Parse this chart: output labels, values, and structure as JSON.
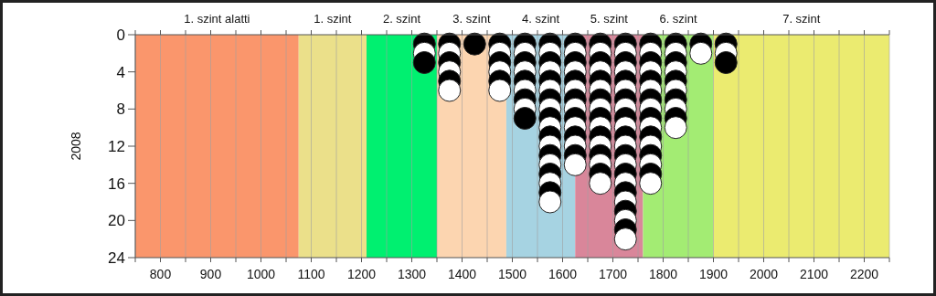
{
  "chart_data": {
    "type": "scatter",
    "ylabel": "2008",
    "xlim": [
      750,
      2250
    ],
    "ylim": [
      24,
      0
    ],
    "xticks": [
      {
        "value": 750,
        "label": null
      },
      800,
      {
        "value": 850,
        "label": null
      },
      900,
      {
        "value": 950,
        "label": null
      },
      1000,
      {
        "value": 1050,
        "label": null
      },
      1100,
      {
        "value": 1150,
        "label": null
      },
      1200,
      {
        "value": 1250,
        "label": null
      },
      1300,
      {
        "value": 1350,
        "label": null
      },
      1400,
      {
        "value": 1450,
        "label": null
      },
      1500,
      {
        "value": 1550,
        "label": null
      },
      1600,
      {
        "value": 1650,
        "label": null
      },
      1700,
      {
        "value": 1750,
        "label": null
      },
      1800,
      {
        "value": 1850,
        "label": null
      },
      1900,
      {
        "value": 1950,
        "label": null
      },
      2000,
      {
        "value": 2050,
        "label": null
      },
      2100,
      {
        "value": 2150,
        "label": null
      },
      2200,
      {
        "value": 2250,
        "label": null
      }
    ],
    "yticks": [
      0,
      4,
      8,
      12,
      16,
      20,
      24
    ],
    "grid": "x",
    "marker": "circle",
    "bands": [
      {
        "axis": "x",
        "from": 750,
        "to": 1075,
        "label": "1. szint alatti",
        "color": "#fa966c"
      },
      {
        "axis": "x",
        "from": 1075,
        "to": 1210,
        "label": "1. szint",
        "color": "#ebe08a"
      },
      {
        "axis": "x",
        "from": 1210,
        "to": 1350,
        "label": "2. szint",
        "color": "#00f070"
      },
      {
        "axis": "x",
        "from": 1350,
        "to": 1488,
        "label": "3. szint",
        "color": "#fcd5b0"
      },
      {
        "axis": "x",
        "from": 1488,
        "to": 1625,
        "label": "4. szint",
        "color": "#a6d3e2"
      },
      {
        "axis": "x",
        "from": 1625,
        "to": 1760,
        "label": "5. szint",
        "color": "#d9869a"
      },
      {
        "axis": "x",
        "from": 1760,
        "to": 1900,
        "label": "6. szint",
        "color": "#a3ec73"
      },
      {
        "axis": "x",
        "from": 1900,
        "to": 2250,
        "label": "7. szint",
        "color": "#ebeb70"
      }
    ],
    "series": [
      {
        "color": "#000000",
        "x": [
          1325,
          1325,
          1375,
          1375,
          1375,
          1425,
          1475,
          1475,
          1475,
          1525,
          1525,
          1525,
          1525,
          1525,
          1575,
          1575,
          1575,
          1575,
          1575,
          1575,
          1575,
          1575,
          1575,
          1625,
          1625,
          1625,
          1625,
          1625,
          1625,
          1625,
          1675,
          1675,
          1675,
          1675,
          1675,
          1675,
          1675,
          1675,
          1725,
          1725,
          1725,
          1725,
          1725,
          1725,
          1725,
          1725,
          1725,
          1725,
          1725,
          1775,
          1775,
          1775,
          1775,
          1775,
          1775,
          1775,
          1775,
          1825,
          1825,
          1825,
          1825,
          1825,
          1875,
          1925,
          1925
        ],
        "values": [
          1,
          3,
          1,
          3,
          5,
          1,
          1,
          3,
          5,
          1,
          3,
          5,
          7,
          9,
          1,
          3,
          5,
          7,
          9,
          11,
          13,
          15,
          17,
          1,
          3,
          5,
          7,
          9,
          11,
          13,
          1,
          3,
          5,
          7,
          9,
          11,
          13,
          15,
          1,
          3,
          5,
          7,
          9,
          11,
          13,
          15,
          17,
          19,
          21,
          1,
          3,
          5,
          7,
          9,
          11,
          13,
          15,
          1,
          3,
          5,
          7,
          9,
          1,
          1,
          3
        ]
      },
      {
        "color": "#ffffff",
        "x": [
          1325,
          1375,
          1375,
          1375,
          1475,
          1475,
          1475,
          1525,
          1525,
          1525,
          1525,
          1575,
          1575,
          1575,
          1575,
          1575,
          1575,
          1575,
          1575,
          1575,
          1625,
          1625,
          1625,
          1625,
          1625,
          1625,
          1625,
          1675,
          1675,
          1675,
          1675,
          1675,
          1675,
          1675,
          1675,
          1725,
          1725,
          1725,
          1725,
          1725,
          1725,
          1725,
          1725,
          1725,
          1725,
          1725,
          1775,
          1775,
          1775,
          1775,
          1775,
          1775,
          1775,
          1775,
          1825,
          1825,
          1825,
          1825,
          1825,
          1875,
          1925
        ],
        "values": [
          2,
          2,
          4,
          6,
          2,
          4,
          6,
          2,
          4,
          6,
          8,
          2,
          4,
          6,
          8,
          10,
          12,
          14,
          16,
          18,
          2,
          4,
          6,
          8,
          10,
          12,
          14,
          2,
          4,
          6,
          8,
          10,
          12,
          14,
          16,
          2,
          4,
          6,
          8,
          10,
          12,
          14,
          16,
          18,
          20,
          22,
          2,
          4,
          6,
          8,
          10,
          12,
          14,
          16,
          2,
          4,
          6,
          8,
          10,
          2,
          2
        ]
      }
    ]
  }
}
